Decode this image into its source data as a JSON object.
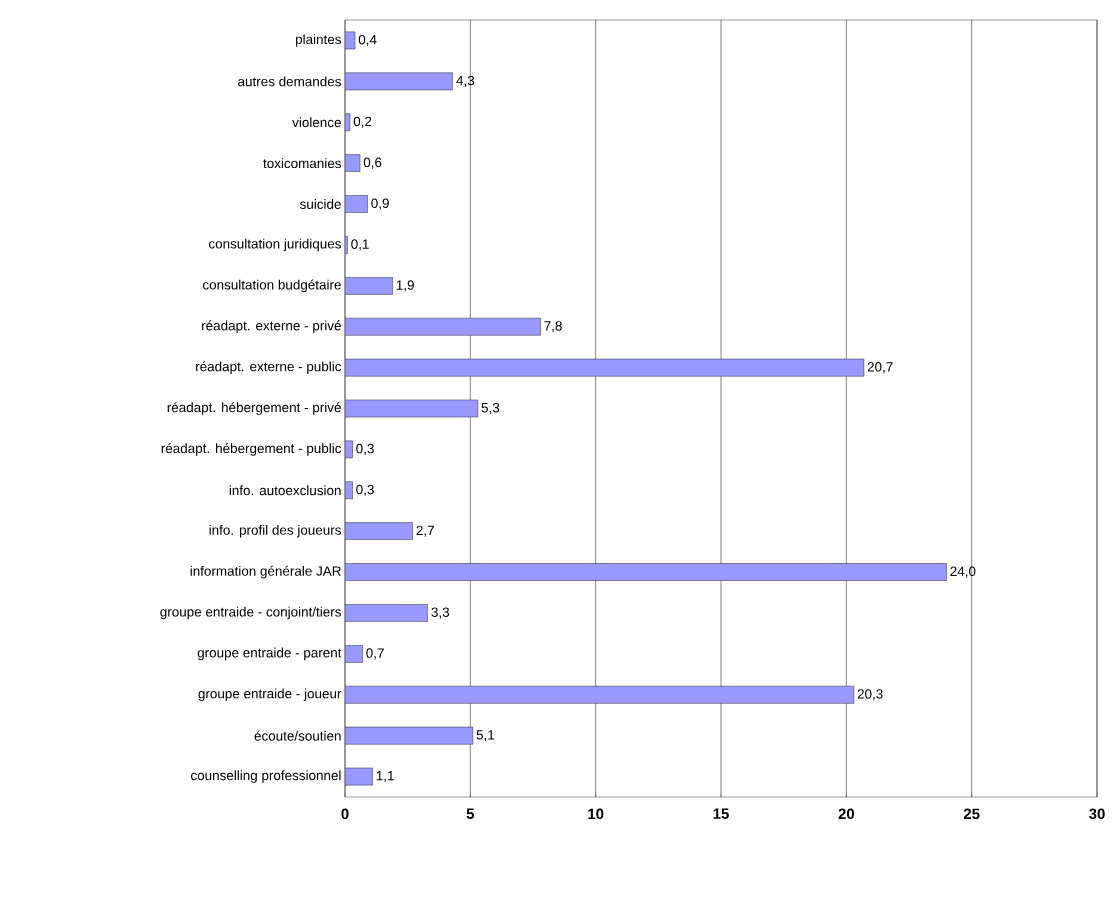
{
  "chart_data": {
    "type": "bar",
    "orientation": "horizontal",
    "categories": [
      "plaintes",
      "autres demandes",
      "violence",
      "toxicomanies",
      "suicide",
      "consultation juridiques",
      "consultation budgétaire",
      "réadapt. externe - privé",
      "réadapt. externe - public",
      "réadapt. hébergement - privé",
      "réadapt. hébergement - public",
      "info. autoexclusion",
      "info. profil des joueurs",
      "information générale JAR",
      "groupe entraide - conjoint/tiers",
      "groupe entraide - parent",
      "groupe entraide - joueur",
      "écoute/soutien",
      "counselling professionnel"
    ],
    "values": [
      0.4,
      4.3,
      0.2,
      0.6,
      0.9,
      0.1,
      1.9,
      7.8,
      20.7,
      5.3,
      0.3,
      0.3,
      2.7,
      24.0,
      3.3,
      0.7,
      20.3,
      5.1,
      1.1
    ],
    "value_labels": [
      "0,4",
      "4,3",
      "0,2",
      "0,6",
      "0,9",
      "0,1",
      "1,9",
      "7,8",
      "20,7",
      "5,3",
      "0,3",
      "0,3",
      "2,7",
      "24,0",
      "3,3",
      "0,7",
      "20,3",
      "5,1",
      "1,1"
    ],
    "color": "#9999ff",
    "xlim": [
      0,
      30
    ],
    "xticks": [
      0,
      5,
      10,
      15,
      20,
      25,
      30
    ],
    "grid": "x"
  }
}
